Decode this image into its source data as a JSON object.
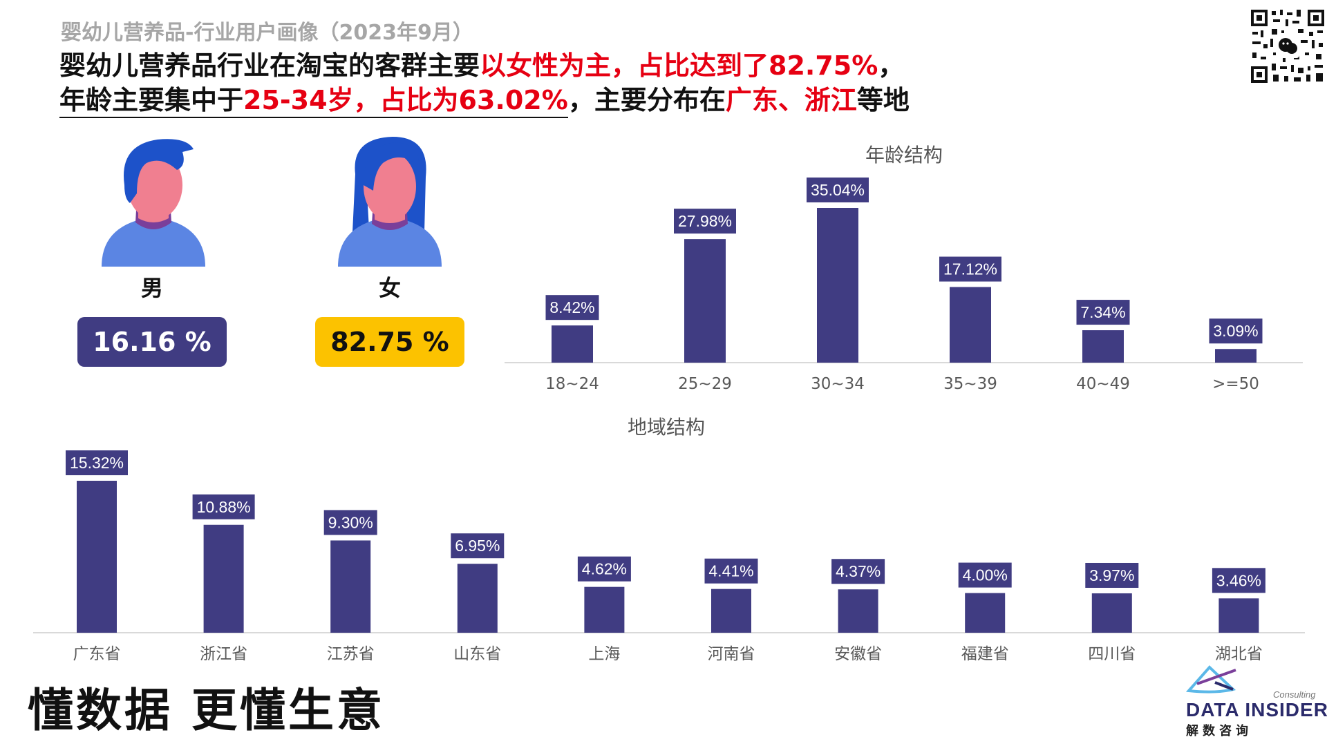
{
  "page": {
    "subtitle": "婴幼儿营养品-行业用户画像（2023年9月）",
    "headline": {
      "line1_a": "婴幼儿营养品行业在淘宝的客群主要",
      "line1_b": "以女性为主，占比达到了82.75%",
      "line1_c": "，",
      "line2_a": "年龄主要集中于",
      "line2_b": "25-34岁，占比为63.02%",
      "line2_c": "，主要分布在",
      "line2_d": "广东、浙江",
      "line2_e": "等地"
    },
    "slogan": "懂数据 更懂生意"
  },
  "gender": {
    "male": {
      "label": "男",
      "value_text": "16.16 %",
      "value": 16.16
    },
    "female": {
      "label": "女",
      "value_text": "82.75 %",
      "value": 82.75
    }
  },
  "colors": {
    "bar": "#403c82",
    "highlight_red": "#e60012",
    "female_badge": "#fcc200",
    "avatar_hair": "#1d52c9",
    "avatar_skin": "#f07f90",
    "avatar_body": "#5b85e3",
    "avatar_neck": "#7a3f9a"
  },
  "chart_data": [
    {
      "type": "bar",
      "title": "年龄结构",
      "categories": [
        "18~24",
        "25~29",
        "30~34",
        "35~39",
        "40~49",
        ">=50"
      ],
      "values": [
        8.42,
        27.98,
        35.04,
        17.12,
        7.34,
        3.09
      ],
      "labels": [
        "8.42%",
        "27.98%",
        "35.04%",
        "17.12%",
        "7.34%",
        "3.09%"
      ],
      "unit": "%",
      "ylim": [
        0,
        35.04
      ],
      "grid": false,
      "legend": "none"
    },
    {
      "type": "bar",
      "title": "地域结构",
      "categories": [
        "广东省",
        "浙江省",
        "江苏省",
        "山东省",
        "上海",
        "河南省",
        "安徽省",
        "福建省",
        "四川省",
        "湖北省"
      ],
      "values": [
        15.32,
        10.88,
        9.3,
        6.95,
        4.62,
        4.41,
        4.37,
        4.0,
        3.97,
        3.46
      ],
      "labels": [
        "15.32%",
        "10.88%",
        "9.30%",
        "6.95%",
        "4.62%",
        "4.41%",
        "4.37%",
        "4.00%",
        "3.97%",
        "3.46%"
      ],
      "unit": "%",
      "ylim": [
        0,
        15.32
      ],
      "grid": false,
      "legend": "none"
    }
  ],
  "logo": {
    "name": "DATA INSIDER",
    "tag": "Consulting",
    "cn": "解数咨询"
  }
}
